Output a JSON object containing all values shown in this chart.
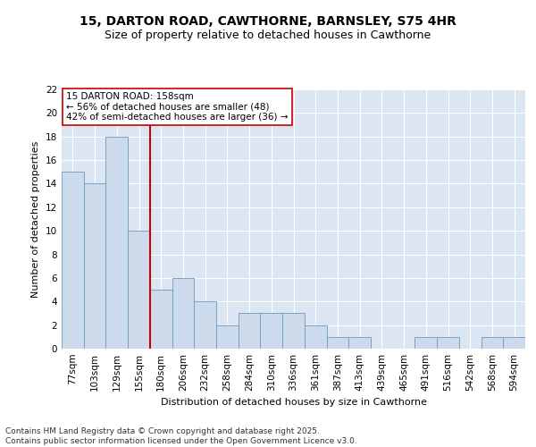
{
  "title_line1": "15, DARTON ROAD, CAWTHORNE, BARNSLEY, S75 4HR",
  "title_line2": "Size of property relative to detached houses in Cawthorne",
  "xlabel": "Distribution of detached houses by size in Cawthorne",
  "ylabel": "Number of detached properties",
  "categories": [
    "77sqm",
    "103sqm",
    "129sqm",
    "155sqm",
    "180sqm",
    "206sqm",
    "232sqm",
    "258sqm",
    "284sqm",
    "310sqm",
    "336sqm",
    "361sqm",
    "387sqm",
    "413sqm",
    "439sqm",
    "465sqm",
    "491sqm",
    "516sqm",
    "542sqm",
    "568sqm",
    "594sqm"
  ],
  "values": [
    15,
    14,
    18,
    10,
    5,
    6,
    4,
    2,
    3,
    3,
    3,
    2,
    1,
    1,
    0,
    0,
    1,
    1,
    0,
    1,
    1
  ],
  "bar_color": "#ccdaec",
  "bar_edge_color": "#6a9abf",
  "background_color": "#dce6f2",
  "ylim": [
    0,
    22
  ],
  "yticks": [
    0,
    2,
    4,
    6,
    8,
    10,
    12,
    14,
    16,
    18,
    20,
    22
  ],
  "vline_x": 3.5,
  "vline_color": "#cc0000",
  "annotation_line1": "15 DARTON ROAD: 158sqm",
  "annotation_line2": "← 56% of detached houses are smaller (48)",
  "annotation_line3": "42% of semi-detached houses are larger (36) →",
  "annotation_box_color": "#ffffff",
  "annotation_box_edge_color": "#cc0000",
  "footer_text": "Contains HM Land Registry data © Crown copyright and database right 2025.\nContains public sector information licensed under the Open Government Licence v3.0.",
  "title_fontsize": 10,
  "subtitle_fontsize": 9,
  "ylabel_fontsize": 8,
  "xlabel_fontsize": 8,
  "tick_fontsize": 7.5,
  "annotation_fontsize": 7.5,
  "footer_fontsize": 6.5
}
